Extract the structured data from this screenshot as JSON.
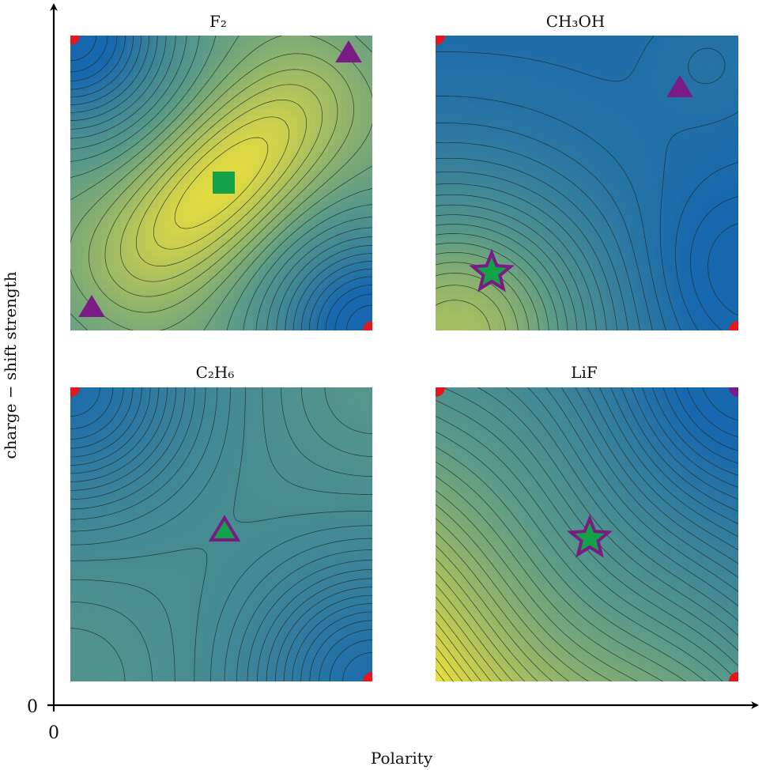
{
  "figure": {
    "xlabel": "Polarity",
    "ylabel": "charge − shift strength",
    "x_origin_label": "0",
    "y_origin_label": "0"
  },
  "colors": {
    "low": "#1768ae",
    "mid": "#5a9a88",
    "high": "#ecdf3c",
    "contour_line": "#1f2a22",
    "red_marker": "#e8151b",
    "purple_marker": "#7b1b86",
    "green_marker": "#13a14a"
  },
  "chart_data": [
    {
      "type": "heatmap",
      "title": "F₂",
      "landscape": "contour map; high-value yellow ellipse at center-left, low blue at top-left and bottom-right corners",
      "markers": [
        {
          "shape": "circle",
          "color": "red",
          "location": "top-left corner"
        },
        {
          "shape": "circle",
          "color": "red",
          "location": "bottom-right corner"
        },
        {
          "shape": "triangle",
          "color": "purple",
          "location": "top-right"
        },
        {
          "shape": "triangle",
          "color": "purple",
          "location": "bottom-left"
        },
        {
          "shape": "square",
          "color": "green",
          "location": "center-left"
        }
      ]
    },
    {
      "type": "heatmap",
      "title": "CH₃OH",
      "landscape": "contour map; mostly blue, greenish-yellow toward bottom-left",
      "markers": [
        {
          "shape": "circle",
          "color": "red",
          "location": "top-left corner"
        },
        {
          "shape": "circle",
          "color": "red",
          "location": "bottom-right corner"
        },
        {
          "shape": "triangle",
          "color": "purple",
          "location": "upper-right"
        },
        {
          "shape": "star",
          "color": "green with purple outline",
          "location": "lower-left"
        }
      ]
    },
    {
      "type": "heatmap",
      "title": "C₂H₆",
      "landscape": "contour map; blue-green saddle, low blue at top-left and bottom-right corners",
      "markers": [
        {
          "shape": "circle",
          "color": "red",
          "location": "top-left corner"
        },
        {
          "shape": "circle",
          "color": "red",
          "location": "bottom-right corner"
        },
        {
          "shape": "triangle",
          "color": "green with purple outline",
          "location": "center-left"
        }
      ]
    },
    {
      "type": "heatmap",
      "title": "LiF",
      "landscape": "contour map; gradient from blue at top-right to yellow at bottom-left, dense diagonal contours",
      "markers": [
        {
          "shape": "circle",
          "color": "red",
          "location": "top-left corner"
        },
        {
          "shape": "circle",
          "color": "purple",
          "location": "top-right corner"
        },
        {
          "shape": "circle",
          "color": "red",
          "location": "bottom-right corner"
        },
        {
          "shape": "star",
          "color": "green with purple outline",
          "location": "center-right"
        }
      ]
    }
  ]
}
